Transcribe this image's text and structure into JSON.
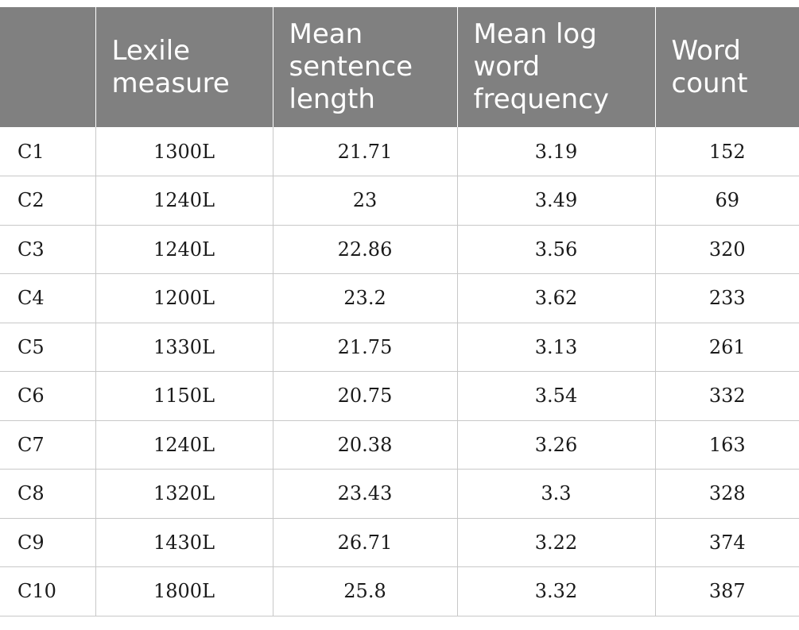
{
  "table": {
    "headers": [
      "",
      "Lexile measure",
      "Mean sentence length",
      "Mean log word frequency",
      "Word count"
    ],
    "rows": [
      [
        "C1",
        "1300L",
        "21.71",
        "3.19",
        "152"
      ],
      [
        "C2",
        "1240L",
        "23",
        "3.49",
        "69"
      ],
      [
        "C3",
        "1240L",
        "22.86",
        "3.56",
        "320"
      ],
      [
        "C4",
        "1200L",
        "23.2",
        "3.62",
        "233"
      ],
      [
        "C5",
        "1330L",
        "21.75",
        "3.13",
        "261"
      ],
      [
        "C6",
        "1150L",
        "20.75",
        "3.54",
        "332"
      ],
      [
        "C7",
        "1240L",
        "20.38",
        "3.26",
        "163"
      ],
      [
        "C8",
        "1320L",
        "23.43",
        "3.3",
        "328"
      ],
      [
        "C9",
        "1430L",
        "26.71",
        "3.22",
        "374"
      ],
      [
        "C10",
        "1800L",
        "25.8",
        "3.32",
        "387"
      ]
    ]
  },
  "colors": {
    "header_bg": "#808080",
    "header_text": "#ffffff",
    "grid_line": "#c8c8c8",
    "body_text": "#1a1a1a"
  }
}
